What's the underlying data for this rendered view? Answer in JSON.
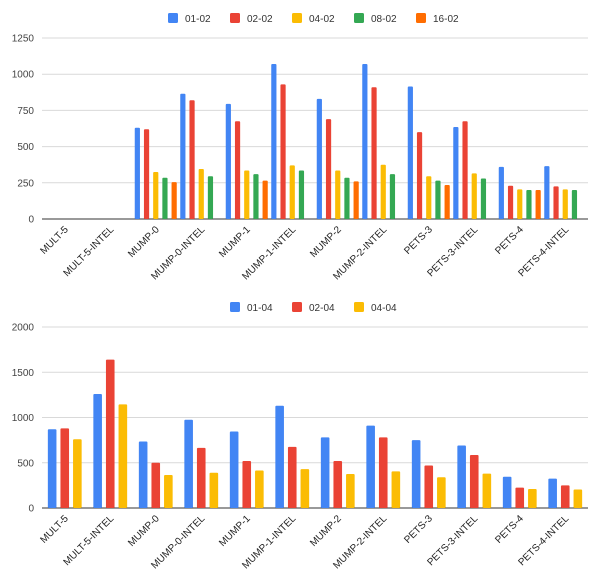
{
  "colors": {
    "series1": "#4285f4",
    "series2": "#ea4335",
    "series3": "#fbbc04",
    "series4": "#34a853",
    "series5": "#ff6d01",
    "grid": "#d9d9d9",
    "background": "#ffffff"
  },
  "chart_data": [
    {
      "type": "bar",
      "categories": [
        "MULT-5",
        "MULT-5-INTEL",
        "MUMP-0",
        "MUMP-0-INTEL",
        "MUMP-1",
        "MUMP-1-INTEL",
        "MUMP-2",
        "MUMP-2-INTEL",
        "PETS-3",
        "PETS-3-INTEL",
        "PETS-4",
        "PETS-4-INTEL"
      ],
      "series": [
        {
          "name": "01-02",
          "color": "#4285f4",
          "values": [
            null,
            null,
            630,
            865,
            795,
            1070,
            830,
            1070,
            915,
            635,
            360,
            365
          ]
        },
        {
          "name": "02-02",
          "color": "#ea4335",
          "values": [
            null,
            null,
            620,
            820,
            675,
            930,
            690,
            910,
            600,
            675,
            230,
            225
          ]
        },
        {
          "name": "04-02",
          "color": "#fbbc04",
          "values": [
            null,
            null,
            325,
            345,
            335,
            370,
            335,
            375,
            295,
            315,
            205,
            205
          ]
        },
        {
          "name": "08-02",
          "color": "#34a853",
          "values": [
            null,
            null,
            285,
            295,
            310,
            335,
            285,
            310,
            265,
            280,
            200,
            200
          ]
        },
        {
          "name": "16-02",
          "color": "#ff6d01",
          "values": [
            null,
            null,
            255,
            null,
            265,
            null,
            260,
            null,
            235,
            null,
            200,
            null
          ]
        }
      ],
      "y_ticks": [
        "0",
        "250",
        "500",
        "750",
        "1000",
        "1250"
      ],
      "ylim": [
        0,
        1250
      ],
      "grid": true,
      "legend_position": "top-center"
    },
    {
      "type": "bar",
      "categories": [
        "MULT-5",
        "MULT-5-INTEL",
        "MUMP-0",
        "MUMP-0-INTEL",
        "MUMP-1",
        "MUMP-1-INTEL",
        "MUMP-2",
        "MUMP-2-INTEL",
        "PETS-3",
        "PETS-3-INTEL",
        "PETS-4",
        "PETS-4-INTEL"
      ],
      "series": [
        {
          "name": "01-04",
          "color": "#4285f4",
          "values": [
            870,
            1260,
            735,
            975,
            845,
            1130,
            780,
            910,
            750,
            690,
            345,
            325
          ]
        },
        {
          "name": "02-04",
          "color": "#ea4335",
          "values": [
            880,
            1640,
            500,
            665,
            520,
            675,
            520,
            780,
            470,
            585,
            225,
            250
          ]
        },
        {
          "name": "04-04",
          "color": "#fbbc04",
          "values": [
            760,
            1145,
            365,
            390,
            415,
            430,
            375,
            405,
            340,
            380,
            210,
            205
          ]
        }
      ],
      "y_ticks": [
        "0",
        "500",
        "1000",
        "1500",
        "2000"
      ],
      "ylim": [
        0,
        2000
      ],
      "grid": true,
      "legend_position": "top-center"
    }
  ]
}
